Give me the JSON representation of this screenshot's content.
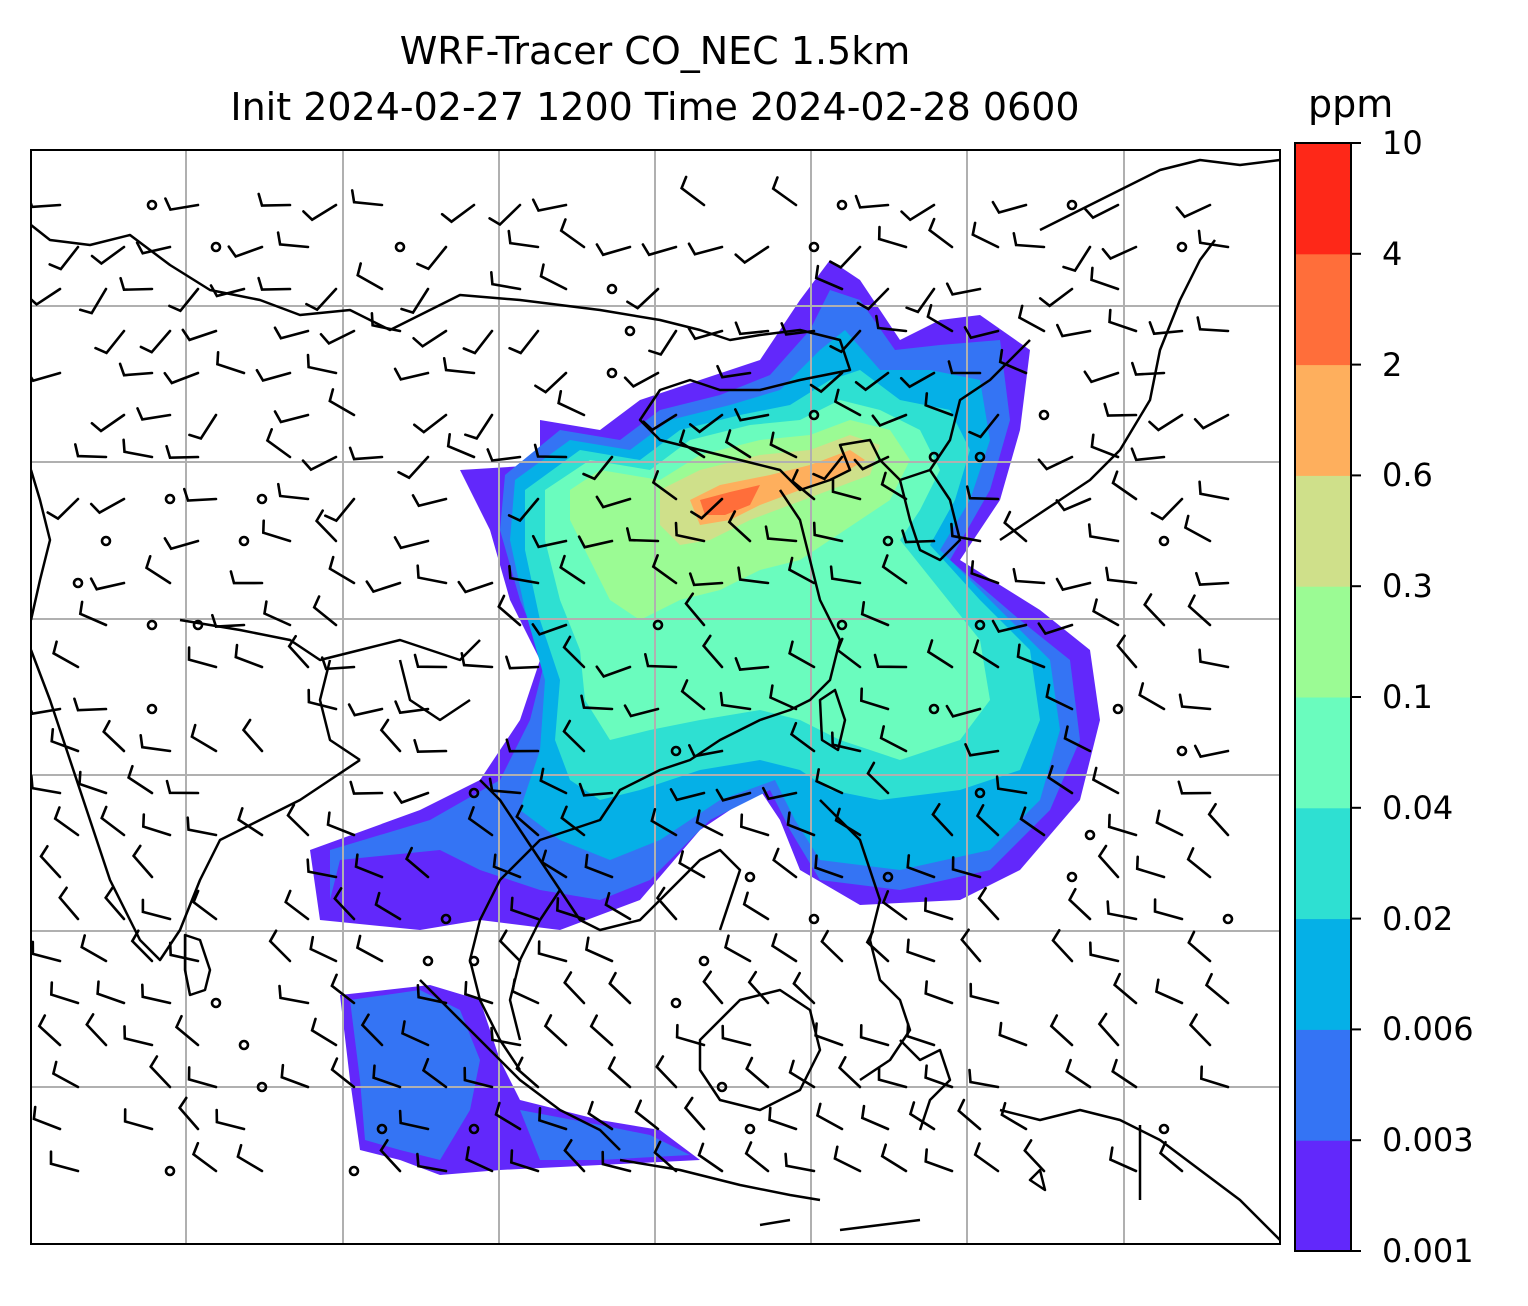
{
  "title": {
    "line1": "WRF-Tracer CO_NEC 1.5km",
    "line2": "Init 2024-02-27 1200 Time 2024-02-28 0600"
  },
  "colorbar": {
    "unit": "ppm",
    "levels": [
      "0.001",
      "0.003",
      "0.006",
      "0.02",
      "0.04",
      "0.1",
      "0.3",
      "0.6",
      "2",
      "4",
      "10"
    ],
    "colors": [
      "#6228fb",
      "#3474f4",
      "#05b0e7",
      "#2ee0d2",
      "#6afcbe",
      "#9bfb94",
      "#cfe08a",
      "#feaf5d",
      "#ff6e3a",
      "#fe2818"
    ]
  },
  "map": {
    "background": "#ffffff",
    "coastline_color": "#000000",
    "gridline_color": "#b0b0b0",
    "wind_barb_color": "#000000"
  }
}
